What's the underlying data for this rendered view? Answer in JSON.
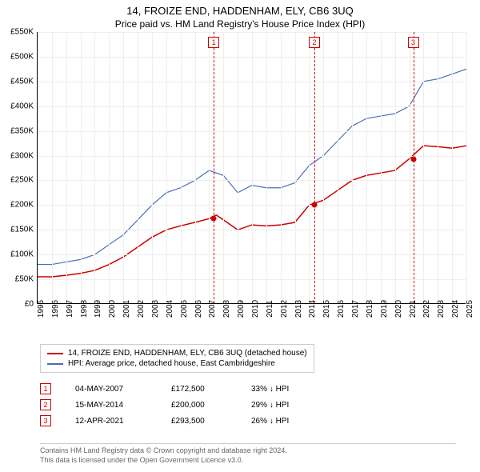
{
  "title": "14, FROIZE END, HADDENHAM, ELY, CB6 3UQ",
  "subtitle": "Price paid vs. HM Land Registry's House Price Index (HPI)",
  "chart": {
    "type": "line",
    "ylim": [
      0,
      550000
    ],
    "ytick_step": 50000,
    "ylabels": [
      "£0",
      "£50K",
      "£100K",
      "£150K",
      "£200K",
      "£250K",
      "£300K",
      "£350K",
      "£400K",
      "£450K",
      "£500K",
      "£550K"
    ],
    "xlim": [
      1995,
      2025
    ],
    "xlabels": [
      "1995",
      "1996",
      "1997",
      "1998",
      "1999",
      "2000",
      "2001",
      "2002",
      "2003",
      "2004",
      "2005",
      "2006",
      "2007",
      "2008",
      "2009",
      "2010",
      "2011",
      "2012",
      "2013",
      "2014",
      "2015",
      "2016",
      "2017",
      "2018",
      "2019",
      "2020",
      "2021",
      "2022",
      "2023",
      "2024",
      "2025"
    ],
    "grid_color": "#eeeeee",
    "background_color": "#ffffff",
    "series": [
      {
        "name": "property",
        "color": "#cc0000",
        "width": 1.5,
        "data": [
          [
            1995,
            55000
          ],
          [
            1996,
            55000
          ],
          [
            1997,
            58000
          ],
          [
            1998,
            62000
          ],
          [
            1999,
            68000
          ],
          [
            2000,
            80000
          ],
          [
            2001,
            95000
          ],
          [
            2002,
            115000
          ],
          [
            2003,
            135000
          ],
          [
            2004,
            150000
          ],
          [
            2005,
            158000
          ],
          [
            2006,
            165000
          ],
          [
            2007,
            172500
          ],
          [
            2007.5,
            180000
          ],
          [
            2008,
            170000
          ],
          [
            2009,
            150000
          ],
          [
            2010,
            160000
          ],
          [
            2011,
            158000
          ],
          [
            2012,
            160000
          ],
          [
            2013,
            165000
          ],
          [
            2014,
            200000
          ],
          [
            2015,
            210000
          ],
          [
            2016,
            230000
          ],
          [
            2017,
            250000
          ],
          [
            2018,
            260000
          ],
          [
            2019,
            265000
          ],
          [
            2020,
            270000
          ],
          [
            2021,
            293500
          ],
          [
            2022,
            320000
          ],
          [
            2023,
            318000
          ],
          [
            2024,
            315000
          ],
          [
            2025,
            320000
          ]
        ]
      },
      {
        "name": "hpi",
        "color": "#4a6fb8",
        "width": 1.2,
        "data": [
          [
            1995,
            80000
          ],
          [
            1996,
            80000
          ],
          [
            1997,
            85000
          ],
          [
            1998,
            90000
          ],
          [
            1999,
            100000
          ],
          [
            2000,
            120000
          ],
          [
            2001,
            140000
          ],
          [
            2002,
            170000
          ],
          [
            2003,
            200000
          ],
          [
            2004,
            225000
          ],
          [
            2005,
            235000
          ],
          [
            2006,
            250000
          ],
          [
            2007,
            270000
          ],
          [
            2008,
            260000
          ],
          [
            2009,
            225000
          ],
          [
            2010,
            240000
          ],
          [
            2011,
            235000
          ],
          [
            2012,
            235000
          ],
          [
            2013,
            245000
          ],
          [
            2014,
            280000
          ],
          [
            2015,
            300000
          ],
          [
            2016,
            330000
          ],
          [
            2017,
            360000
          ],
          [
            2018,
            375000
          ],
          [
            2019,
            380000
          ],
          [
            2020,
            385000
          ],
          [
            2021,
            400000
          ],
          [
            2022,
            450000
          ],
          [
            2023,
            455000
          ],
          [
            2024,
            465000
          ],
          [
            2025,
            475000
          ]
        ]
      }
    ],
    "markers": [
      {
        "num": "1",
        "year": 2007.33,
        "color": "#cc0000",
        "point_y": 172500
      },
      {
        "num": "2",
        "year": 2014.37,
        "color": "#cc0000",
        "point_y": 200000
      },
      {
        "num": "3",
        "year": 2021.28,
        "color": "#cc0000",
        "point_y": 293500
      }
    ]
  },
  "legend": {
    "items": [
      {
        "color": "#cc0000",
        "label": "14, FROIZE END, HADDENHAM, ELY, CB6 3UQ (detached house)"
      },
      {
        "color": "#4a6fb8",
        "label": "HPI: Average price, detached house, East Cambridgeshire"
      }
    ]
  },
  "sales": [
    {
      "num": "1",
      "color": "#cc0000",
      "date": "04-MAY-2007",
      "price": "£172,500",
      "diff": "33% ↓ HPI"
    },
    {
      "num": "2",
      "color": "#cc0000",
      "date": "15-MAY-2014",
      "price": "£200,000",
      "diff": "29% ↓ HPI"
    },
    {
      "num": "3",
      "color": "#cc0000",
      "date": "12-APR-2021",
      "price": "£293,500",
      "diff": "26% ↓ HPI"
    }
  ],
  "footer": {
    "line1": "Contains HM Land Registry data © Crown copyright and database right 2024.",
    "line2": "This data is licensed under the Open Government Licence v3.0."
  }
}
